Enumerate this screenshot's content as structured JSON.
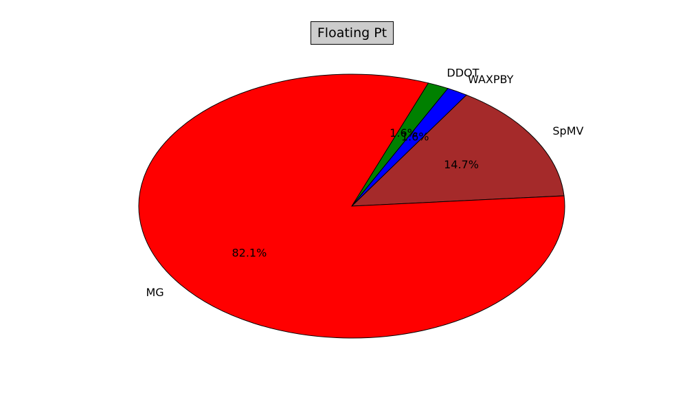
{
  "chart_data": {
    "type": "pie",
    "title": "Floating Pt",
    "slices": [
      {
        "label": "SpMV",
        "value": 14.7,
        "pct_label": "14.7%",
        "color": "#a52a2a"
      },
      {
        "label": "WAXPBY",
        "value": 1.6,
        "pct_label": "1.6%",
        "color": "#0000ff"
      },
      {
        "label": "DDOT",
        "value": 1.6,
        "pct_label": "1.6%",
        "color": "#008000"
      },
      {
        "label": "MG",
        "value": 82.1,
        "pct_label": "82.1%",
        "color": "#ff0000"
      }
    ],
    "legend": "none"
  }
}
